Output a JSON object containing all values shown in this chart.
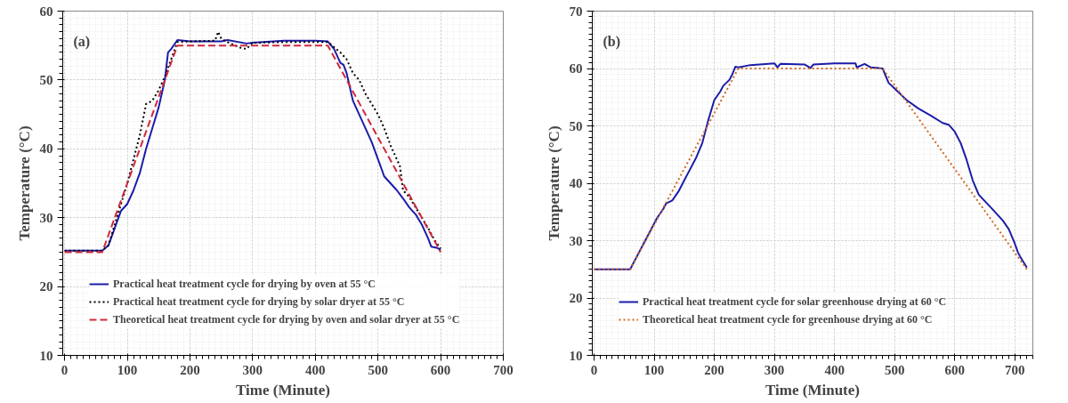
{
  "chart_data": [
    {
      "type": "line",
      "annotations": [
        "(a)"
      ],
      "xlabel": "Time (Minute)",
      "ylabel": "Temperature (°C)",
      "xlim": [
        -3,
        700
      ],
      "ylim": [
        10,
        60
      ],
      "xticks": [
        0,
        100,
        200,
        300,
        400,
        500,
        600,
        700
      ],
      "yticks": [
        10,
        20,
        30,
        40,
        50,
        60
      ],
      "grid": true,
      "legend": "bottom left",
      "series": [
        {
          "name": "Practical heat treatment cycle for drying by oven at 55 °C",
          "color": "#1c1ca8",
          "line_style": "solid",
          "x": [
            0,
            60,
            70,
            80,
            90,
            100,
            110,
            120,
            130,
            140,
            150,
            160,
            165,
            170,
            180,
            200,
            250,
            260,
            290,
            300,
            350,
            400,
            420,
            430,
            440,
            445,
            450,
            460,
            470,
            480,
            490,
            500,
            510,
            520,
            530,
            540,
            550,
            560,
            570,
            580,
            585,
            595,
            600
          ],
          "values": [
            25.2,
            25.2,
            26,
            28.5,
            31,
            32,
            34,
            36.5,
            40,
            43,
            46,
            50,
            54,
            54.5,
            55.8,
            55.6,
            55.6,
            55.8,
            55.3,
            55.4,
            55.7,
            55.7,
            55.6,
            54.5,
            52.5,
            52.2,
            51,
            47,
            45,
            43,
            41,
            38.5,
            36,
            35,
            34,
            32.8,
            31.5,
            30.5,
            29,
            27,
            25.8,
            25.6,
            25.3
          ]
        },
        {
          "name": "Practical heat treatment cycle for drying by solar dryer at 55 °C",
          "color": "#000000",
          "line_style": "dotted",
          "x": [
            0,
            60,
            70,
            80,
            90,
            100,
            110,
            120,
            130,
            140,
            150,
            160,
            170,
            180,
            200,
            240,
            245,
            250,
            260,
            280,
            290,
            300,
            350,
            420,
            440,
            450,
            460,
            470,
            480,
            490,
            500,
            510,
            520,
            530,
            535,
            540,
            550,
            560,
            570,
            580,
            590,
            600
          ],
          "values": [
            25.2,
            25.2,
            26,
            29,
            32,
            35,
            38.5,
            42,
            46.5,
            47,
            48.5,
            50.5,
            53,
            55.5,
            55.6,
            55.7,
            57,
            56,
            55.5,
            54.7,
            54.5,
            55.4,
            55.5,
            55.5,
            54,
            53,
            51,
            50,
            48,
            46.5,
            45,
            43,
            40.5,
            38.5,
            37.5,
            34,
            33,
            31.5,
            30,
            28.5,
            26.8,
            25.5
          ]
        },
        {
          "name": "Theoretical heat treatment cycle for drying by oven and solar dryer at 55 °C",
          "color": "#d0283c",
          "line_style": "dashed",
          "x": [
            0,
            60,
            180,
            420,
            600
          ],
          "values": [
            25,
            25,
            55,
            55,
            25
          ]
        }
      ]
    },
    {
      "type": "line",
      "annotations": [
        "(b)"
      ],
      "xlabel": "Time (Minute)",
      "ylabel": "Temperature (°C)",
      "xlim": [
        -3,
        730
      ],
      "ylim": [
        10,
        70
      ],
      "xticks": [
        0,
        100,
        200,
        300,
        400,
        500,
        600,
        700
      ],
      "yticks": [
        10,
        20,
        30,
        40,
        50,
        60,
        70
      ],
      "grid": true,
      "legend": "bottom left",
      "series": [
        {
          "name": "Practical heat treatment cycle for solar greenhouse drying at 60 °C",
          "color": "#1c1ca8",
          "line_style": "solid",
          "x": [
            0,
            60,
            65,
            75,
            85,
            95,
            105,
            115,
            120,
            130,
            140,
            150,
            160,
            170,
            180,
            190,
            200,
            210,
            215,
            225,
            230,
            235,
            240,
            260,
            300,
            305,
            310,
            350,
            360,
            365,
            400,
            435,
            437,
            450,
            460,
            470,
            480,
            490,
            500,
            510,
            520,
            540,
            560,
            580,
            590,
            600,
            610,
            620,
            630,
            640,
            660,
            680,
            690,
            700,
            705,
            710,
            720
          ],
          "values": [
            25,
            25,
            26,
            28,
            30,
            32,
            34,
            35.5,
            36.5,
            37,
            38.5,
            40.5,
            42.5,
            44.5,
            47,
            51,
            54.5,
            56,
            57,
            58,
            59,
            60.3,
            60.2,
            60.6,
            60.9,
            60.2,
            60.8,
            60.7,
            60.1,
            60.7,
            60.9,
            60.9,
            60.2,
            60.8,
            60.2,
            60.1,
            60,
            57.5,
            56.5,
            55.5,
            54.5,
            53,
            51.8,
            50.5,
            50.2,
            49,
            47,
            44,
            40.5,
            38,
            35.8,
            33.5,
            32,
            29.5,
            28,
            27,
            25.3
          ]
        },
        {
          "name": "Theoretical heat treatment cycle for greenhouse drying at 60 °C",
          "color": "#d2691e",
          "line_style": "dotted",
          "x": [
            0,
            60,
            240,
            480,
            720
          ],
          "values": [
            25,
            25,
            60,
            60,
            25
          ]
        }
      ]
    }
  ]
}
